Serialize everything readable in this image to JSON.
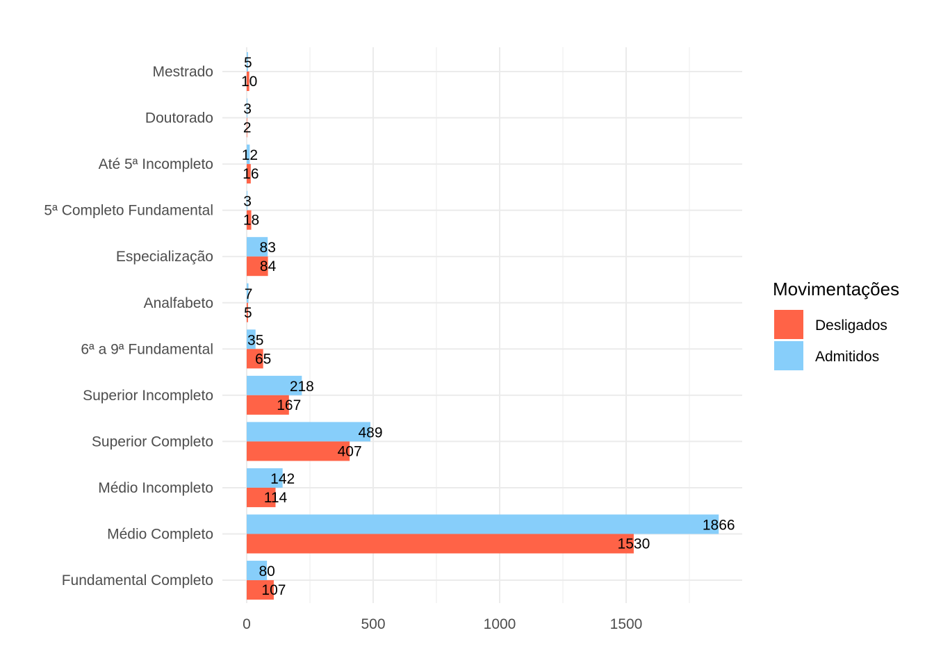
{
  "chart_data": {
    "type": "bar",
    "orientation": "horizontal",
    "categories": [
      "Mestrado",
      "Doutorado",
      "Até 5ª Incompleto",
      "5ª Completo Fundamental",
      "Especialização",
      "Analfabeto",
      "6ª a 9ª Fundamental",
      "Superior Incompleto",
      "Superior Completo",
      "Médio Incompleto",
      "Médio Completo",
      "Fundamental Completo"
    ],
    "series": [
      {
        "name": "Admitidos",
        "color": "#87CEFA",
        "values": [
          5,
          3,
          12,
          3,
          83,
          7,
          35,
          218,
          489,
          142,
          1866,
          80
        ]
      },
      {
        "name": "Desligados",
        "color": "#FF6347",
        "values": [
          10,
          2,
          16,
          18,
          84,
          5,
          65,
          167,
          407,
          114,
          1530,
          107
        ]
      }
    ],
    "x_ticks": [
      "0",
      "500",
      "1000",
      "1500"
    ],
    "xlim": [
      0,
      1960
    ],
    "grid": true,
    "legend": {
      "title": "Movimentações",
      "position": "right",
      "order": [
        "Desligados",
        "Admitidos"
      ]
    }
  }
}
